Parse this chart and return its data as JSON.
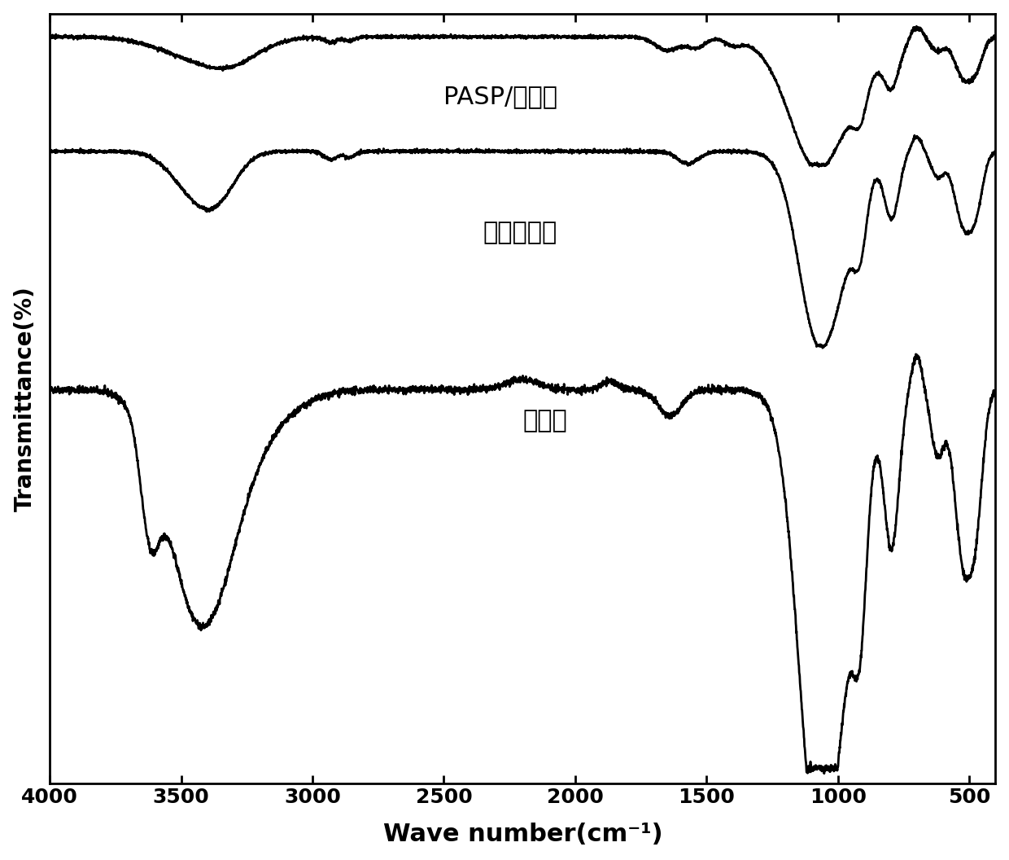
{
  "xlabel": "Wave number(cm⁻¹)",
  "ylabel": "Transmittance(%)",
  "xmin": 4000,
  "xmax": 400,
  "xticks": [
    4000,
    3500,
    3000,
    2500,
    2000,
    1500,
    1000,
    500
  ],
  "labels": [
    "PASP/膨润土",
    "氨基膨润土",
    "膨润土"
  ],
  "background_color": "#ffffff",
  "line_color": "#000000",
  "fontsize_xlabel": 22,
  "fontsize_ylabel": 20,
  "fontsize_tick": 18,
  "fontsize_annotation": 22
}
